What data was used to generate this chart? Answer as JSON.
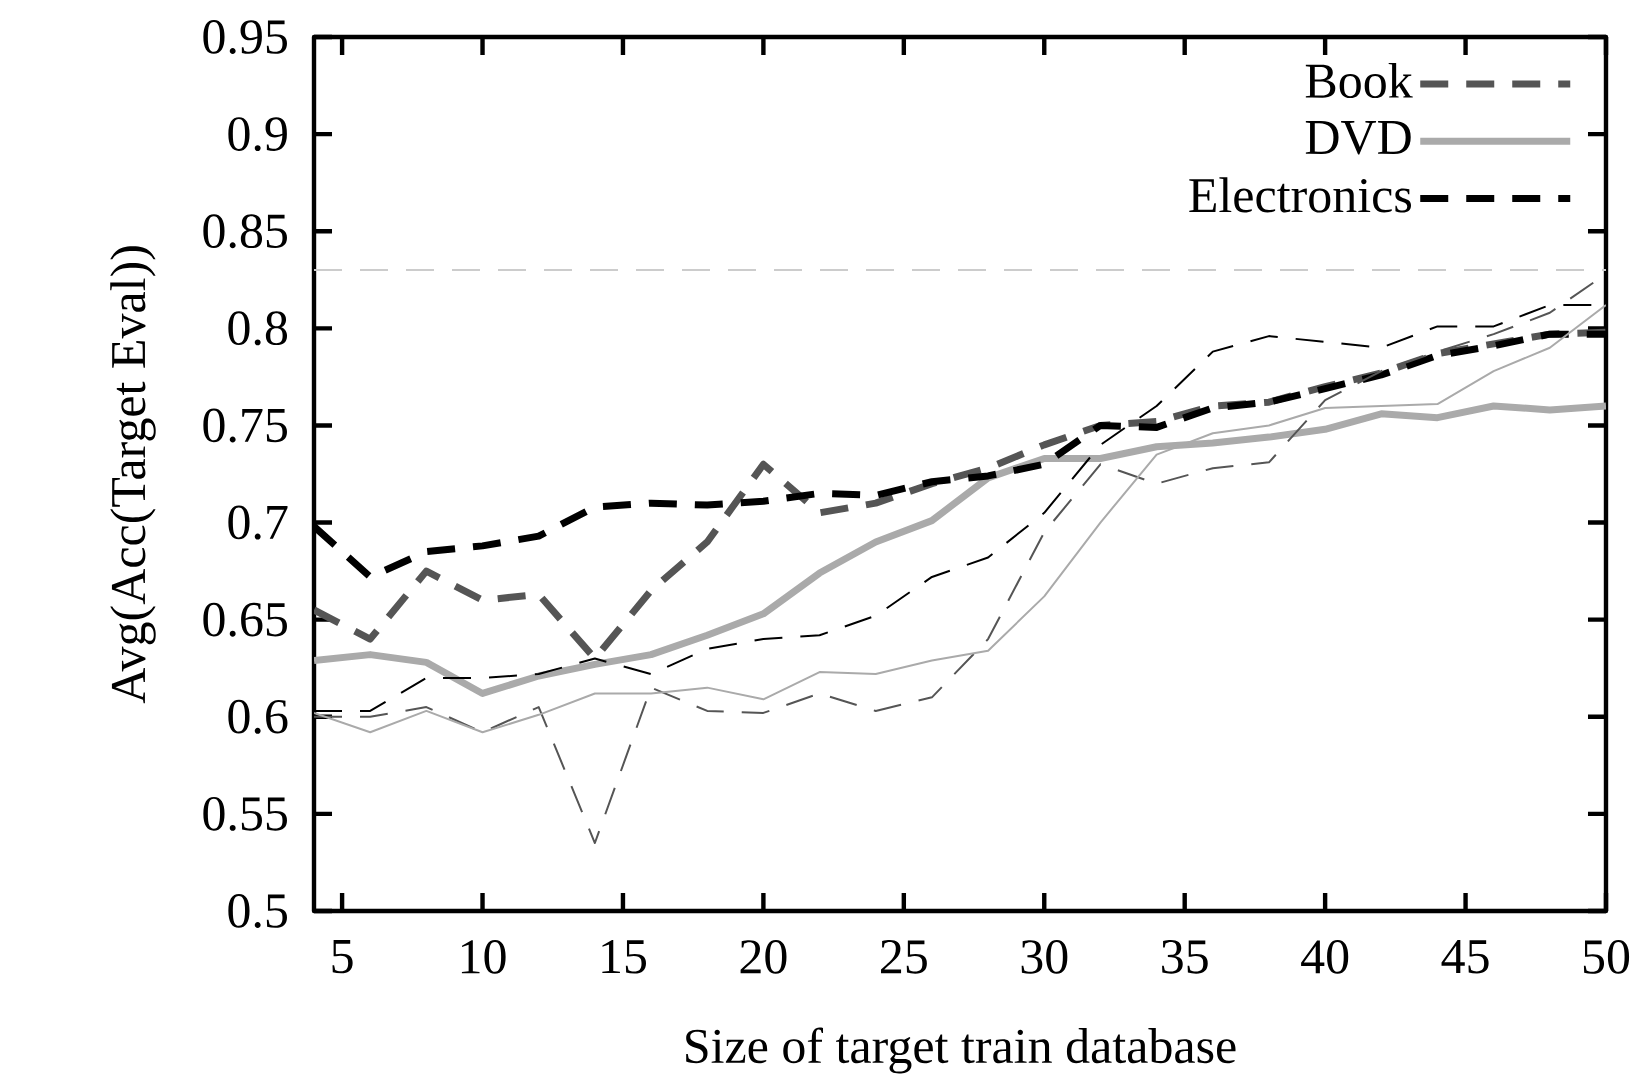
{
  "chart_data": {
    "type": "line",
    "xlabel": "Size of target train database",
    "ylabel": "Avg(Acc(Target Eval))",
    "x": [
      4,
      6,
      8,
      10,
      12,
      14,
      16,
      18,
      20,
      22,
      24,
      26,
      28,
      30,
      32,
      34,
      36,
      38,
      40,
      42,
      44,
      46,
      48,
      50
    ],
    "xlim": [
      4,
      50
    ],
    "xticks": [
      5,
      10,
      15,
      20,
      25,
      30,
      35,
      40,
      45,
      50
    ],
    "ylim": [
      0.5,
      0.95
    ],
    "yticks": [
      0.5,
      0.55,
      0.6,
      0.65,
      0.7,
      0.75,
      0.8,
      0.85,
      0.9,
      0.95
    ],
    "legend": "top right",
    "ref_lines": [
      {
        "axis": "y",
        "value": 0.83,
        "color": "#cccccc",
        "line_style": "dashed"
      }
    ],
    "series": [
      {
        "name": "Book",
        "color": "#555555",
        "line_style": "dashed",
        "values": [
          0.655,
          0.64,
          0.675,
          0.66,
          0.663,
          0.63,
          0.665,
          0.69,
          0.73,
          0.705,
          0.71,
          0.72,
          0.728,
          0.74,
          0.75,
          0.752,
          0.76,
          0.762,
          0.77,
          0.777,
          0.787,
          0.792,
          0.797,
          0.798
        ]
      },
      {
        "name": "DVD",
        "color": "#aaaaaa",
        "line_style": "solid",
        "values": [
          0.629,
          0.632,
          0.628,
          0.612,
          0.621,
          0.627,
          0.632,
          0.642,
          0.653,
          0.674,
          0.69,
          0.701,
          0.723,
          0.733,
          0.733,
          0.739,
          0.741,
          0.744,
          0.748,
          0.756,
          0.754,
          0.76,
          0.758,
          0.76
        ]
      },
      {
        "name": "Electronics",
        "color": "#000000",
        "line_style": "dashed",
        "values": [
          0.698,
          0.672,
          0.685,
          0.688,
          0.693,
          0.708,
          0.71,
          0.709,
          0.711,
          0.715,
          0.714,
          0.721,
          0.724,
          0.73,
          0.75,
          0.749,
          0.759,
          0.762,
          0.769,
          0.776,
          0.786,
          0.791,
          0.797,
          0.797
        ]
      },
      {
        "color": "#555555",
        "line_style": "dashed",
        "values": [
          0.6,
          0.6,
          0.605,
          0.592,
          0.605,
          0.535,
          0.615,
          0.603,
          0.602,
          0.612,
          0.603,
          0.61,
          0.64,
          0.695,
          0.73,
          0.72,
          0.728,
          0.731,
          0.763,
          0.778,
          0.788,
          0.797,
          0.808,
          0.828
        ]
      },
      {
        "color": "#aaaaaa",
        "line_style": "solid",
        "values": [
          0.602,
          0.592,
          0.603,
          0.592,
          0.601,
          0.612,
          0.612,
          0.615,
          0.609,
          0.623,
          0.622,
          0.629,
          0.634,
          0.662,
          0.7,
          0.735,
          0.746,
          0.75,
          0.759,
          0.76,
          0.761,
          0.778,
          0.79,
          0.812
        ]
      },
      {
        "color": "#000000",
        "line_style": "dashed",
        "values": [
          0.603,
          0.603,
          0.62,
          0.62,
          0.622,
          0.63,
          0.622,
          0.635,
          0.64,
          0.642,
          0.652,
          0.672,
          0.682,
          0.705,
          0.74,
          0.76,
          0.788,
          0.796,
          0.793,
          0.79,
          0.801,
          0.801,
          0.812,
          0.812
        ]
      }
    ]
  }
}
